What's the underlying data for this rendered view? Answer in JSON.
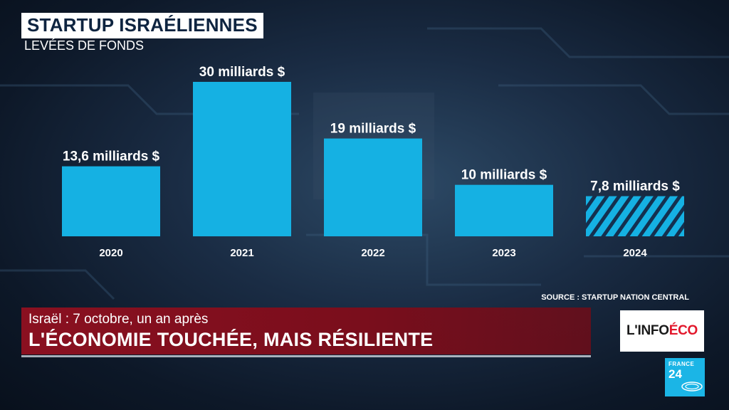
{
  "header": {
    "title": "STARTUP ISRAÉLIENNES",
    "subtitle": "LEVÉES DE FONDS"
  },
  "chart_data": {
    "type": "bar",
    "categories": [
      "2020",
      "2021",
      "2022",
      "2023",
      "2024"
    ],
    "values": [
      13.6,
      30,
      19,
      10,
      7.8
    ],
    "data_labels": [
      "13,6 milliards $",
      "30 milliards $",
      "19 milliards $",
      "10 milliards $",
      "7,8 milliards $"
    ],
    "hatched": [
      false,
      false,
      false,
      false,
      true
    ],
    "ylim": [
      0,
      30
    ],
    "grid": false,
    "bar_color": "#15b1e3"
  },
  "source": "SOURCE : STARTUP NATION CENTRAL",
  "lower_third": {
    "kicker": "Israël : 7 octobre, un an après",
    "headline": "L'ÉCONOMIE TOUCHÉE, MAIS RÉSILIENTE",
    "color": "#8a1020"
  },
  "program_logo": {
    "part1": "L'INFO ",
    "part2": "ÉCO"
  },
  "channel_logo": {
    "line1": "FRANCE",
    "line2": "24"
  }
}
